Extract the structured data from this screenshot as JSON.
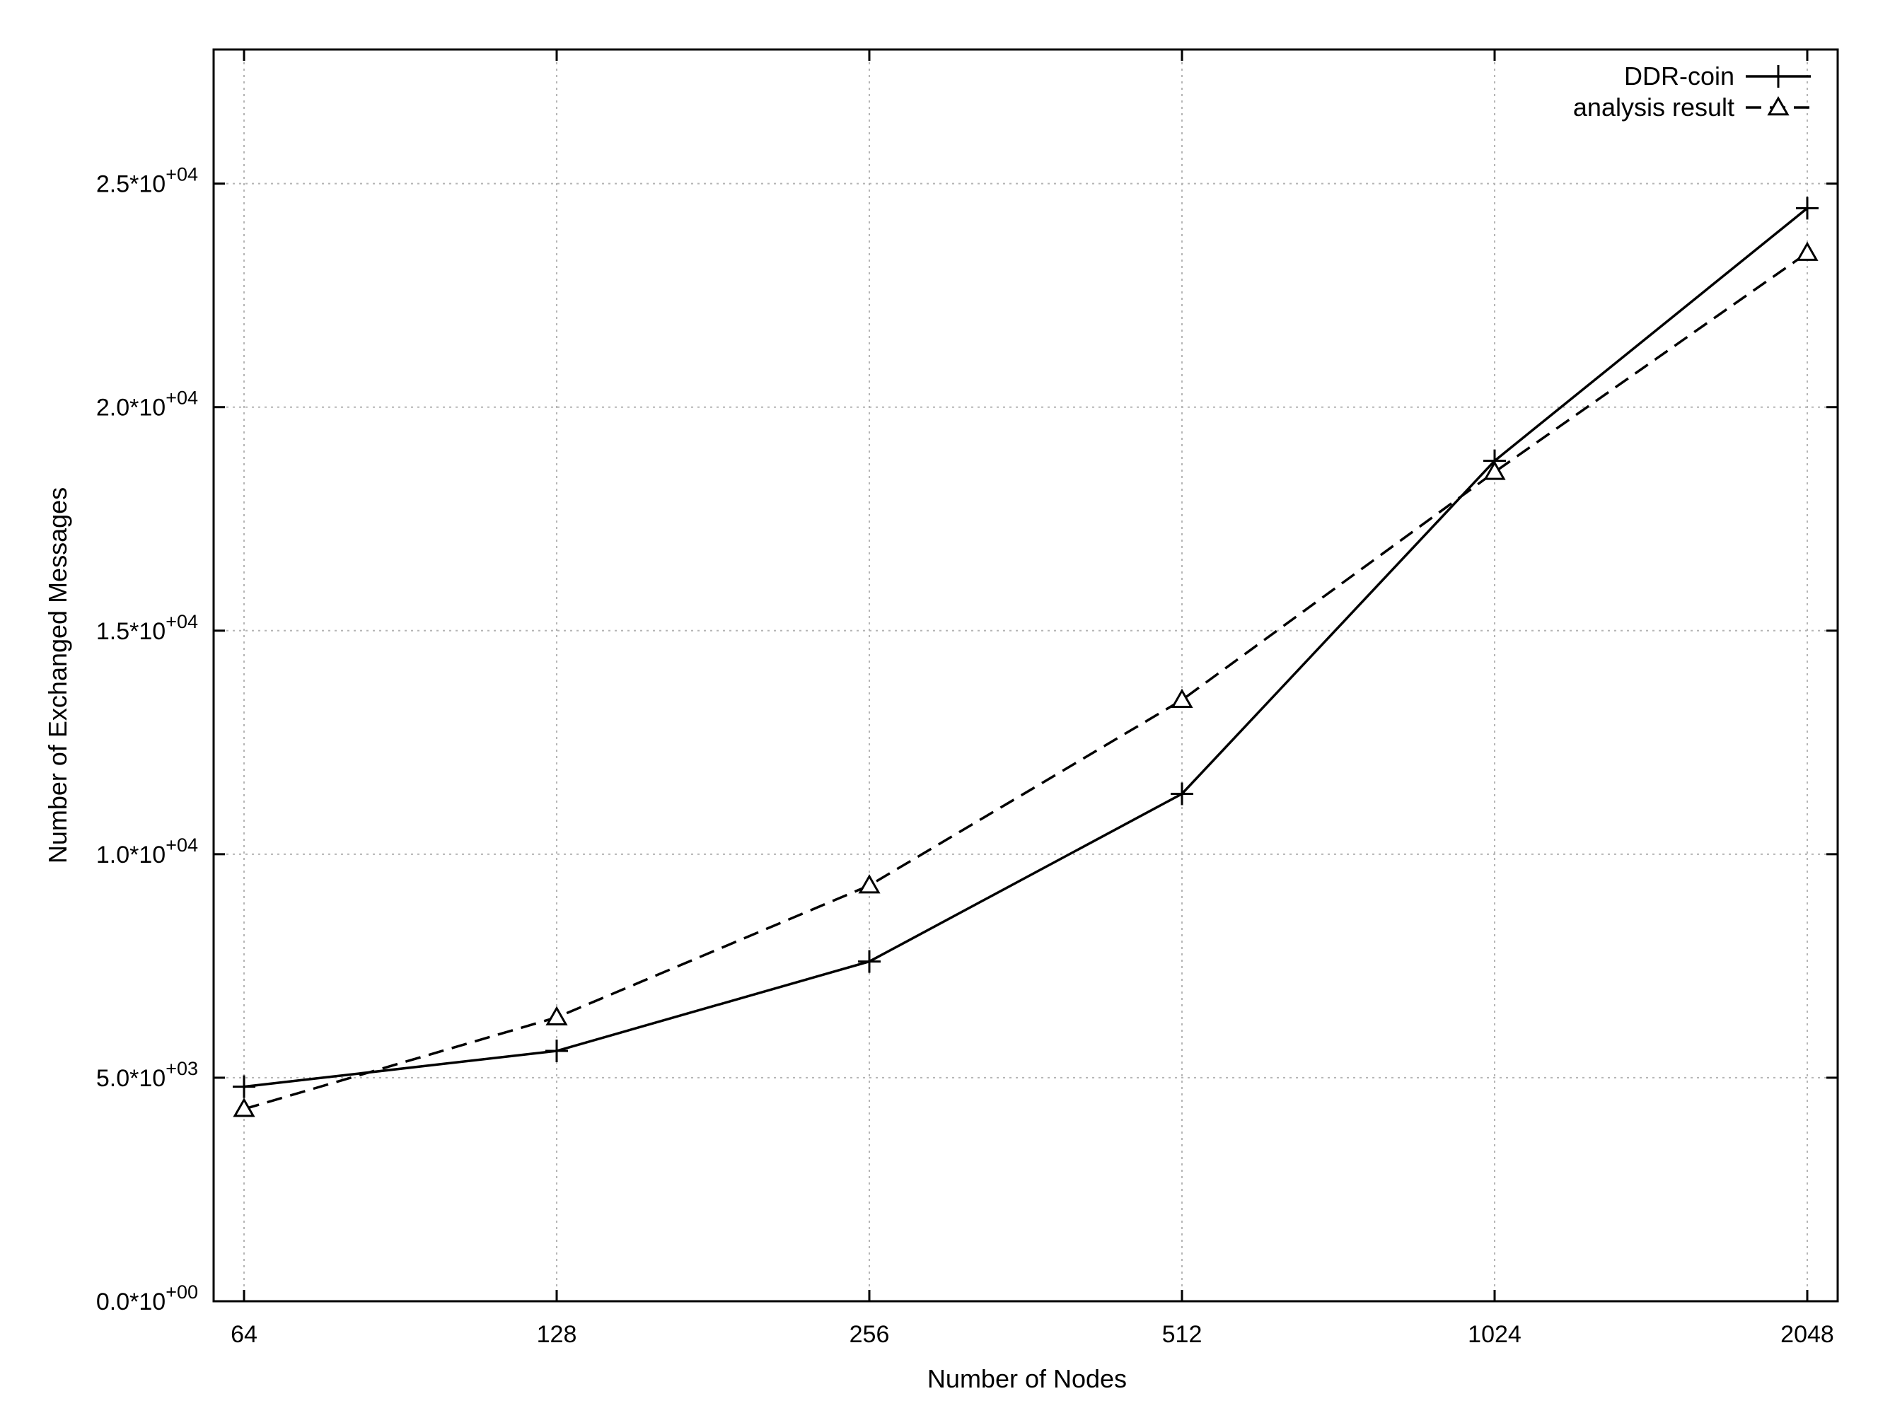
{
  "chart_data": {
    "type": "line",
    "title": "",
    "xlabel": "Number of Nodes",
    "ylabel": "Number of Exchanged Messages",
    "x_scale": "log2",
    "categories": [
      "64",
      "128",
      "256",
      "512",
      "1024",
      "2048"
    ],
    "x": [
      64,
      128,
      256,
      512,
      1024,
      2048
    ],
    "ylim": [
      0,
      28000
    ],
    "y_ticks": [
      {
        "value": 0,
        "mantissa": "0.0*10",
        "exponent": "+00"
      },
      {
        "value": 5000,
        "mantissa": "5.0*10",
        "exponent": "+03"
      },
      {
        "value": 10000,
        "mantissa": "1.0*10",
        "exponent": "+04"
      },
      {
        "value": 15000,
        "mantissa": "1.5*10",
        "exponent": "+04"
      },
      {
        "value": 20000,
        "mantissa": "2.0*10",
        "exponent": "+04"
      },
      {
        "value": 25000,
        "mantissa": "2.5*10",
        "exponent": "+04"
      }
    ],
    "grid": true,
    "legend_position": "top-right",
    "series": [
      {
        "name": "DDR-coin",
        "style": "solid",
        "marker": "plus",
        "values": [
          4800,
          5600,
          7600,
          11350,
          18800,
          24450
        ]
      },
      {
        "name": "analysis result",
        "style": "dashed",
        "marker": "triangle",
        "values": [
          4300,
          6350,
          9300,
          13450,
          18550,
          23450
        ]
      }
    ],
    "colors": {
      "line": "#000000",
      "grid": "#b5b5b5",
      "background": "#ffffff"
    }
  }
}
